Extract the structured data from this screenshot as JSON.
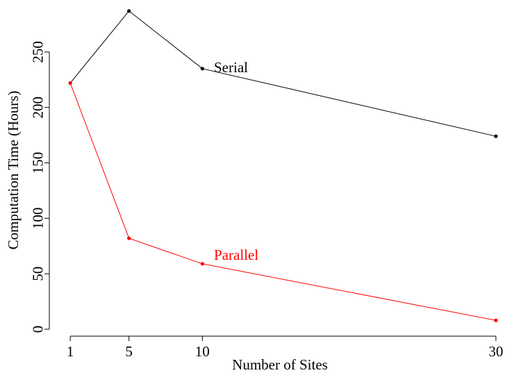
{
  "chart_data": {
    "type": "line",
    "xlabel": "Number of Sites",
    "ylabel": "Computation Time (Hours)",
    "x_ticks": [
      1,
      5,
      10,
      30
    ],
    "y_ticks": [
      0,
      50,
      100,
      150,
      200,
      250
    ],
    "xlim": [
      0,
      31
    ],
    "ylim": [
      0,
      290
    ],
    "grid": false,
    "series": [
      {
        "name": "Serial",
        "color": "#000000",
        "x": [
          1,
          5,
          10,
          30
        ],
        "y": [
          222,
          287,
          235,
          174
        ]
      },
      {
        "name": "Parallel",
        "color": "#ff0000",
        "x": [
          1,
          5,
          10,
          30
        ],
        "y": [
          222,
          82,
          59,
          8
        ]
      }
    ]
  }
}
